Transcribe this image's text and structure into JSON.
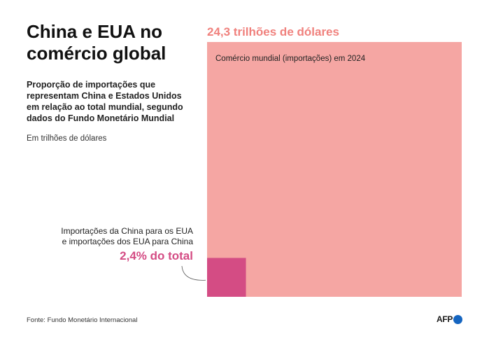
{
  "header": {
    "title_line1": "China e EUA no",
    "title_line2": "comércio global",
    "subtitle_lines": [
      "Proporção de importações que",
      "representam China e Estados Unidos",
      "em relação ao total mundial, segundo",
      "dados do Fundo Monetário Mundial"
    ],
    "units": "Em trilhões de dólares"
  },
  "footer": {
    "source": "Fonte: Fundo Monetário Internacional",
    "logo": "AFP"
  },
  "colors": {
    "world": "#f5a6a3",
    "bilateral": "#d44c84",
    "total_label": "#f0817d",
    "share_label": "#d44c84",
    "logo_dot": "#1565c0"
  },
  "chart_data": {
    "type": "area-comparison (nested squares)",
    "unit": "trilhões de dólares",
    "items": [
      {
        "name": "Comércio mundial (importações) em 2024",
        "value": 24.3,
        "value_label": "24,3 trilhões de dólares"
      },
      {
        "name": "Importações da China para os EUA e importações dos EUA para China",
        "label_lines": [
          "Importações da China para os EUA",
          "e importações dos EUA para China"
        ],
        "share_of_total": 0.024,
        "share_label": "2,4% do total"
      }
    ]
  }
}
